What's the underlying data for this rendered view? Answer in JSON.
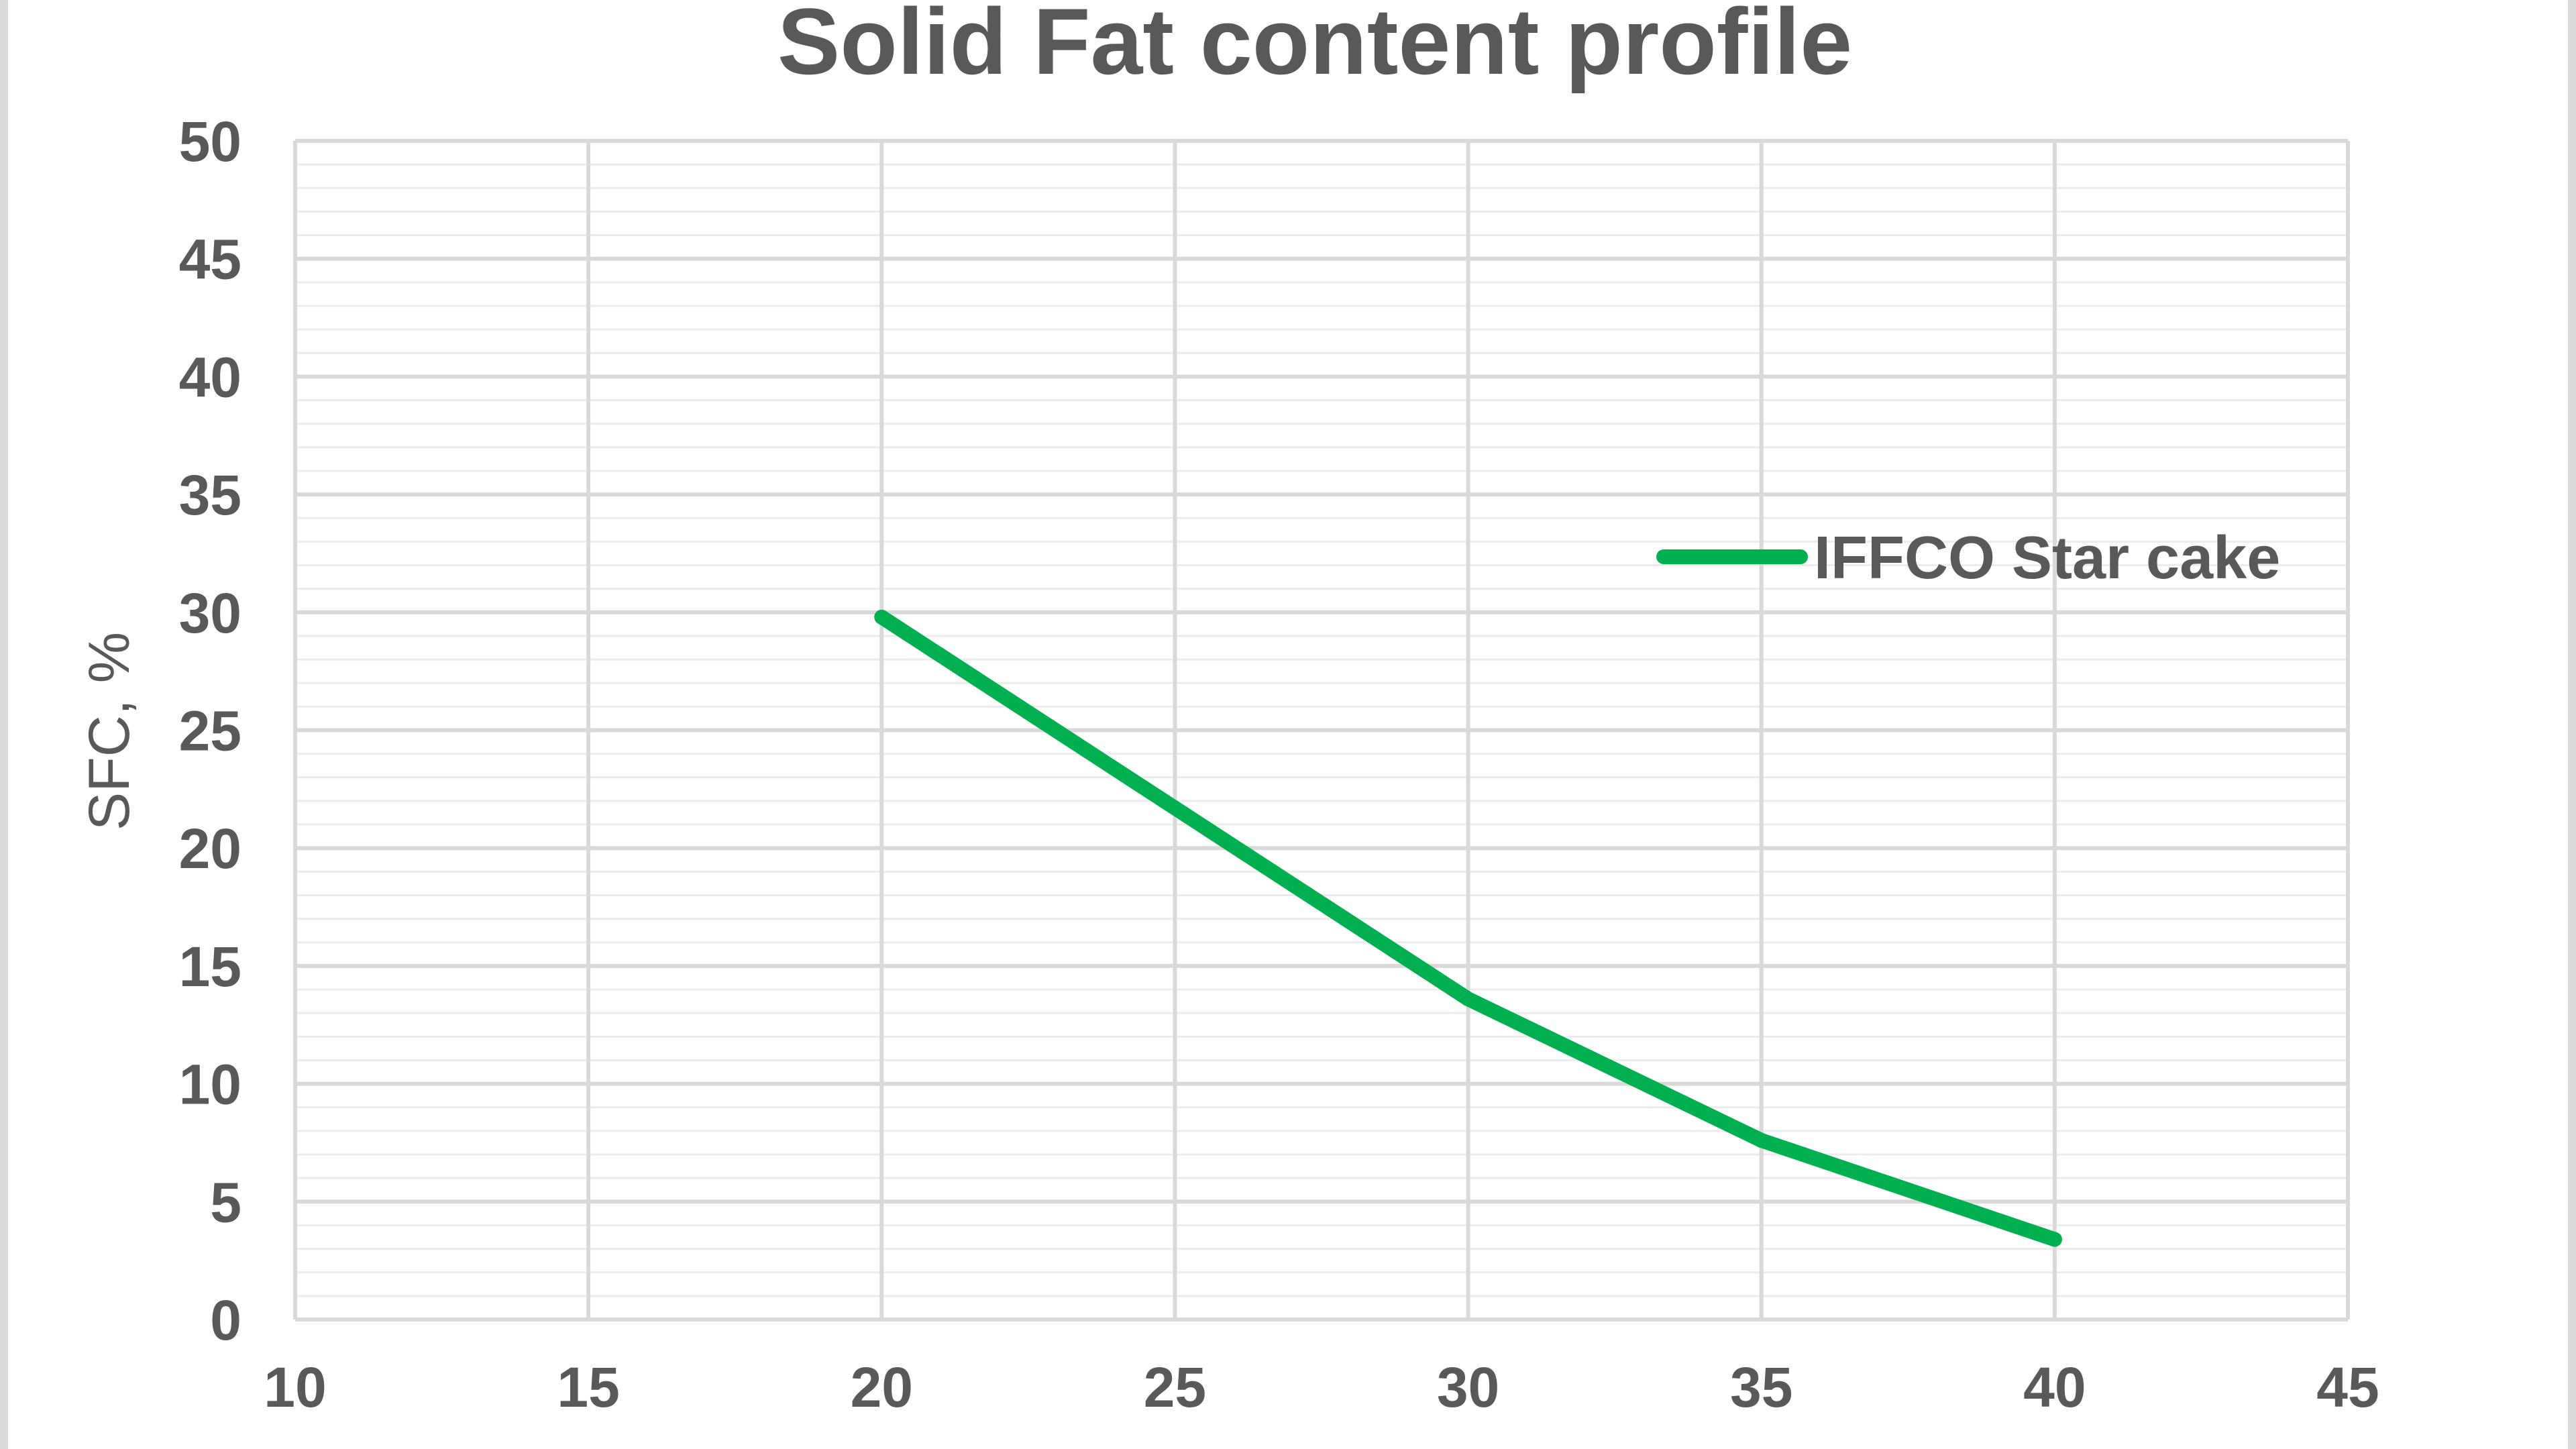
{
  "chart_data": {
    "type": "line",
    "title": "Solid Fat content profile",
    "xlabel": "",
    "ylabel": "SFC, %",
    "xlim": [
      10,
      45
    ],
    "ylim": [
      0,
      50
    ],
    "x_ticks": [
      "10",
      "15",
      "20",
      "25",
      "30",
      "35",
      "40",
      "45"
    ],
    "y_ticks": [
      "0",
      "5",
      "10",
      "15",
      "20",
      "25",
      "30",
      "35",
      "40",
      "45",
      "50"
    ],
    "x_major_step": 5,
    "y_major_step": 5,
    "y_minor_step": 1,
    "grid": true,
    "legend_position": "top-right",
    "series": [
      {
        "name": "IFFCO Star cake",
        "color": "#00b050",
        "x": [
          20,
          25,
          30,
          35,
          40
        ],
        "y": [
          29.8,
          21.7,
          13.6,
          7.6,
          3.4
        ]
      }
    ]
  }
}
